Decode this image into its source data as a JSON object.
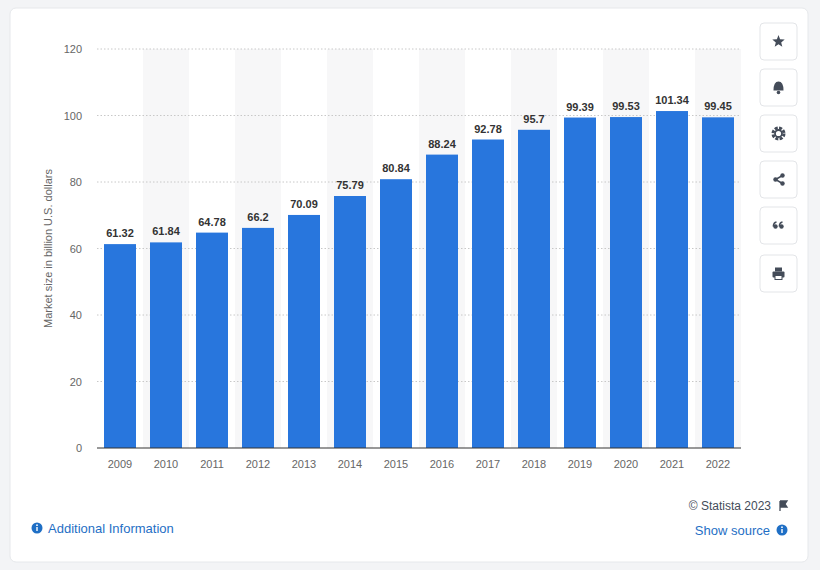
{
  "chart_data": {
    "type": "bar",
    "y_label": "Market size in billion U.S. dollars",
    "categories": [
      "2009",
      "2010",
      "2011",
      "2012",
      "2013",
      "2014",
      "2015",
      "2016",
      "2017",
      "2018",
      "2019",
      "2020",
      "2021",
      "2022"
    ],
    "values": [
      61.32,
      61.84,
      64.78,
      66.2,
      70.09,
      75.79,
      80.84,
      88.24,
      92.78,
      95.7,
      99.39,
      99.53,
      101.34,
      99.45
    ],
    "color": "#2876dd",
    "ylim": [
      0,
      120
    ],
    "yticks": [
      0,
      20,
      40,
      60,
      80,
      100,
      120
    ],
    "grid": true,
    "data_labels": true,
    "annotations": [
      "© Statista 2023",
      "Additional Information",
      "Show source"
    ]
  }
}
